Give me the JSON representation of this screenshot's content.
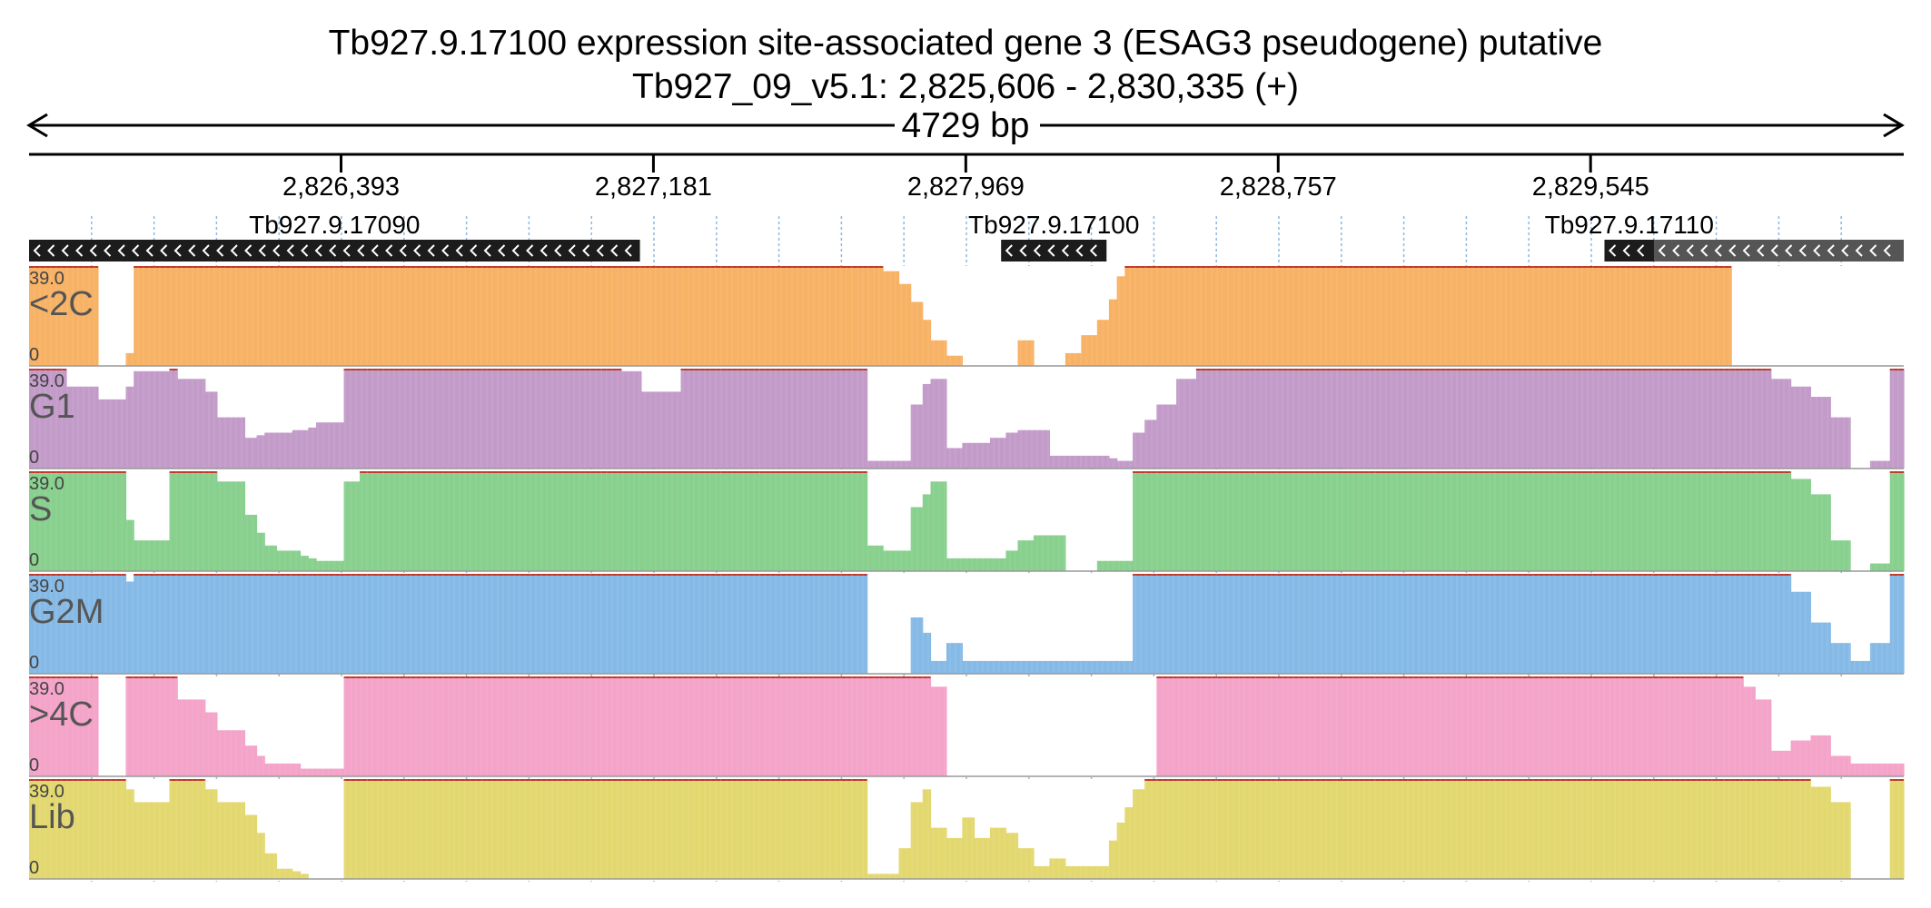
{
  "header": {
    "title_line1": "Tb927.9.17100  expression site-associated gene 3 (ESAG3  pseudogene)  putative",
    "title_line2": "Tb927_09_v5.1: 2,825,606 - 2,830,335 (+)",
    "span_label": "4729 bp"
  },
  "chart_data": {
    "type": "area",
    "title": "Tb927.9.17100  expression site-associated gene 3 (ESAG3  pseudogene)  putative",
    "region": {
      "chromosome": "Tb927_09_v5.1",
      "start": 2825606,
      "end": 2830335,
      "strand": "+"
    },
    "ticks": [
      {
        "pos": 2826393,
        "label": "2,826,393"
      },
      {
        "pos": 2827181,
        "label": "2,827,181"
      },
      {
        "pos": 2827969,
        "label": "2,827,969"
      },
      {
        "pos": 2828757,
        "label": "2,828,757"
      },
      {
        "pos": 2829545,
        "label": "2,829,545"
      }
    ],
    "genes": [
      {
        "name": "Tb927.9.17090",
        "start": 2825606,
        "end": 2827147,
        "strand": "-",
        "color": "#1c1c1c"
      },
      {
        "name": "Tb927.9.17100",
        "start": 2828058,
        "end": 2828324,
        "strand": "-",
        "color": "#1c1c1c"
      },
      {
        "name": "Tb927.9.17110",
        "start": 2829580,
        "end": 2829705,
        "strand": "-",
        "color": "#1c1c1c"
      },
      {
        "name": "",
        "start": 2829705,
        "end": 2830335,
        "strand": "-",
        "color": "#555555"
      }
    ],
    "ylim": [
      0,
      39.0
    ],
    "max_label": "39.0",
    "min_label": "0",
    "x": [
      2825606,
      2825700,
      2825780,
      2825850,
      2825870,
      2825960,
      2825980,
      2826050,
      2826080,
      2826150,
      2826180,
      2826200,
      2826230,
      2826270,
      2826290,
      2826310,
      2826330,
      2826400,
      2826440,
      2826460,
      2826500,
      2826560,
      2826650,
      2826750,
      2826850,
      2826950,
      2827000,
      2827050,
      2827100,
      2827150,
      2827250,
      2827350,
      2827450,
      2827550,
      2827620,
      2827650,
      2827680,
      2827700,
      2827720,
      2827760,
      2827800,
      2827830,
      2827860,
      2827880,
      2827920,
      2827960,
      2827990,
      2828030,
      2828070,
      2828100,
      2828140,
      2828180,
      2828220,
      2828260,
      2828300,
      2828330,
      2828350,
      2828370,
      2828390,
      2828420,
      2828450,
      2828500,
      2828550,
      2828600,
      2828650,
      2828700,
      2828750,
      2828800,
      2828850,
      2828900,
      2828950,
      2829000,
      2829050,
      2829100,
      2829150,
      2829200,
      2829250,
      2829300,
      2829350,
      2829400,
      2829450,
      2829500,
      2829550,
      2829600,
      2829650,
      2829700,
      2829750,
      2829800,
      2829850,
      2829880,
      2829900,
      2829930,
      2829960,
      2830000,
      2830050,
      2830100,
      2830150,
      2830200,
      2830250,
      2830300,
      2830335
    ],
    "series": [
      {
        "name": "<2C",
        "color": "#f7b265",
        "values": [
          39,
          39,
          0,
          5,
          39,
          39,
          39,
          39,
          39,
          39,
          39,
          39,
          39,
          39,
          39,
          39,
          39,
          39,
          39,
          39,
          39,
          39,
          39,
          39,
          39,
          39,
          39,
          39,
          39,
          39,
          39,
          39,
          39,
          39,
          39,
          39,
          39,
          39,
          39,
          37,
          32,
          25,
          18,
          10,
          4,
          0,
          0,
          0,
          0,
          10,
          0,
          0,
          5,
          12,
          18,
          26,
          35,
          39,
          39,
          39,
          39,
          39,
          39,
          39,
          39,
          39,
          39,
          39,
          39,
          39,
          39,
          39,
          39,
          39,
          39,
          39,
          39,
          39,
          39,
          39,
          39,
          39,
          39,
          39,
          39,
          39,
          39,
          39,
          39,
          39,
          0,
          0,
          0,
          0,
          0,
          0,
          0,
          0,
          0,
          0,
          39
        ]
      },
      {
        "name": "G1",
        "color": "#c39bc9",
        "values": [
          39,
          32,
          27,
          32,
          38,
          39,
          35,
          30,
          20,
          12,
          13,
          14,
          14,
          15,
          15,
          16,
          18,
          39,
          39,
          39,
          39,
          39,
          39,
          39,
          39,
          39,
          39,
          39,
          38,
          30,
          39,
          39,
          39,
          39,
          39,
          39,
          39,
          39,
          3,
          3,
          3,
          25,
          33,
          35,
          8,
          10,
          10,
          12,
          14,
          15,
          15,
          5,
          5,
          5,
          5,
          4,
          3,
          3,
          14,
          19,
          25,
          35,
          39,
          39,
          39,
          39,
          39,
          39,
          39,
          39,
          39,
          39,
          39,
          39,
          39,
          39,
          39,
          39,
          39,
          39,
          39,
          39,
          39,
          39,
          39,
          39,
          39,
          39,
          39,
          39,
          39,
          39,
          39,
          35,
          32,
          28,
          20,
          0,
          3,
          39,
          39
        ]
      },
      {
        "name": "S",
        "color": "#88d08e",
        "values": [
          39,
          39,
          39,
          20,
          12,
          39,
          39,
          39,
          35,
          22,
          15,
          10,
          8,
          8,
          6,
          5,
          4,
          35,
          39,
          39,
          39,
          39,
          39,
          39,
          39,
          39,
          39,
          39,
          39,
          39,
          39,
          39,
          39,
          39,
          39,
          39,
          39,
          39,
          10,
          8,
          8,
          25,
          30,
          35,
          5,
          5,
          5,
          5,
          8,
          12,
          14,
          14,
          0,
          0,
          4,
          4,
          4,
          4,
          39,
          39,
          39,
          39,
          39,
          39,
          39,
          39,
          39,
          39,
          39,
          39,
          39,
          39,
          39,
          39,
          39,
          39,
          39,
          39,
          39,
          39,
          39,
          39,
          39,
          39,
          39,
          39,
          39,
          39,
          39,
          39,
          39,
          39,
          39,
          39,
          36,
          30,
          12,
          0,
          3,
          39,
          39
        ]
      },
      {
        "name": "G2M",
        "color": "#86bae6",
        "values": [
          39,
          39,
          39,
          36,
          39,
          39,
          39,
          39,
          39,
          39,
          39,
          39,
          39,
          39,
          39,
          39,
          39,
          39,
          39,
          39,
          39,
          39,
          39,
          39,
          39,
          39,
          39,
          39,
          39,
          39,
          39,
          39,
          39,
          39,
          39,
          39,
          39,
          39,
          0,
          0,
          0,
          22,
          16,
          5,
          12,
          5,
          5,
          5,
          5,
          5,
          5,
          5,
          5,
          5,
          5,
          5,
          5,
          5,
          39,
          39,
          39,
          39,
          39,
          39,
          39,
          39,
          39,
          39,
          39,
          39,
          39,
          39,
          39,
          39,
          39,
          39,
          39,
          39,
          39,
          39,
          39,
          39,
          39,
          39,
          39,
          39,
          39,
          39,
          39,
          39,
          39,
          39,
          39,
          39,
          32,
          20,
          12,
          5,
          12,
          39,
          39
        ]
      },
      {
        "name": ">4C",
        "color": "#f4a3c9",
        "values": [
          39,
          39,
          0,
          39,
          39,
          39,
          30,
          25,
          18,
          12,
          8,
          5,
          5,
          5,
          3,
          3,
          3,
          39,
          39,
          39,
          39,
          39,
          39,
          39,
          39,
          39,
          39,
          39,
          39,
          39,
          39,
          39,
          39,
          39,
          39,
          39,
          39,
          39,
          39,
          39,
          39,
          39,
          39,
          35,
          0,
          0,
          0,
          0,
          0,
          0,
          0,
          0,
          0,
          0,
          0,
          0,
          0,
          0,
          0,
          0,
          39,
          39,
          39,
          39,
          39,
          39,
          39,
          39,
          39,
          39,
          39,
          39,
          39,
          39,
          39,
          39,
          39,
          39,
          39,
          39,
          39,
          39,
          39,
          39,
          39,
          39,
          39,
          39,
          39,
          39,
          39,
          35,
          30,
          10,
          14,
          16,
          8,
          5,
          5,
          5,
          39
        ]
      },
      {
        "name": "Lib",
        "color": "#e3d86f",
        "values": [
          39,
          39,
          39,
          35,
          30,
          39,
          39,
          35,
          30,
          25,
          18,
          10,
          4,
          3,
          2,
          0,
          0,
          39,
          39,
          39,
          39,
          39,
          39,
          39,
          39,
          39,
          39,
          39,
          39,
          39,
          39,
          39,
          39,
          39,
          39,
          39,
          39,
          39,
          2,
          2,
          12,
          30,
          35,
          20,
          16,
          24,
          16,
          20,
          18,
          12,
          5,
          8,
          5,
          5,
          5,
          15,
          22,
          28,
          35,
          39,
          39,
          39,
          39,
          39,
          39,
          39,
          39,
          39,
          39,
          39,
          39,
          39,
          39,
          39,
          39,
          39,
          39,
          39,
          39,
          39,
          39,
          39,
          39,
          39,
          39,
          39,
          39,
          39,
          39,
          39,
          39,
          39,
          39,
          39,
          39,
          36,
          30,
          0,
          0,
          39,
          39
        ]
      }
    ]
  }
}
